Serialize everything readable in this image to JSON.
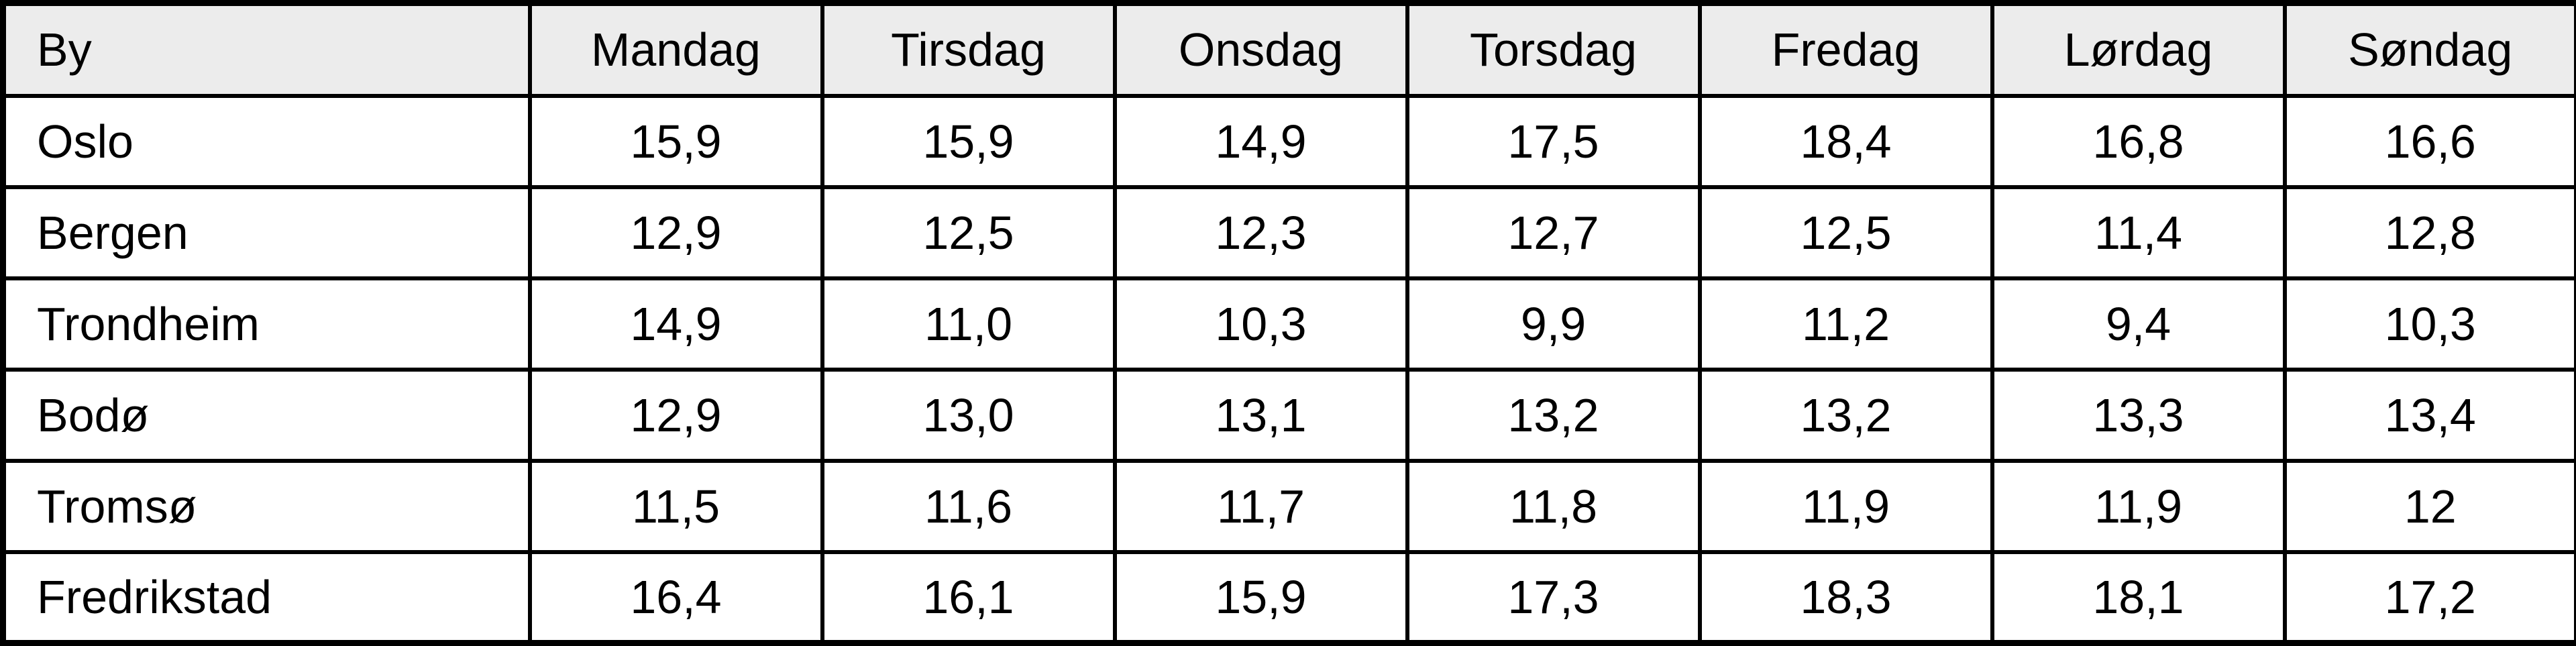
{
  "table": {
    "columns": [
      "By",
      "Mandag",
      "Tirsdag",
      "Onsdag",
      "Torsdag",
      "Fredag",
      "Lørdag",
      "Søndag"
    ],
    "rows": [
      {
        "city": "Oslo",
        "values": [
          "15,9",
          "15,9",
          "14,9",
          "17,5",
          "18,4",
          "16,8",
          "16,6"
        ]
      },
      {
        "city": "Bergen",
        "values": [
          "12,9",
          "12,5",
          "12,3",
          "12,7",
          "12,5",
          "11,4",
          "12,8"
        ]
      },
      {
        "city": "Trondheim",
        "values": [
          "14,9",
          "11,0",
          "10,3",
          "9,9",
          "11,2",
          "9,4",
          "10,3"
        ]
      },
      {
        "city": "Bodø",
        "values": [
          "12,9",
          "13,0",
          "13,1",
          "13,2",
          "13,2",
          "13,3",
          "13,4"
        ]
      },
      {
        "city": "Tromsø",
        "values": [
          "11,5",
          "11,6",
          "11,7",
          "11,8",
          "11,9",
          "11,9",
          "12"
        ]
      },
      {
        "city": "Fredrikstad",
        "values": [
          "16,4",
          "16,1",
          "15,9",
          "17,3",
          "18,3",
          "18,1",
          "17,2"
        ]
      }
    ]
  },
  "chart_data": {
    "type": "table",
    "title": "",
    "categories": [
      "Mandag",
      "Tirsdag",
      "Onsdag",
      "Torsdag",
      "Fredag",
      "Lørdag",
      "Søndag"
    ],
    "series": [
      {
        "name": "Oslo",
        "values": [
          15.9,
          15.9,
          14.9,
          17.5,
          18.4,
          16.8,
          16.6
        ]
      },
      {
        "name": "Bergen",
        "values": [
          12.9,
          12.5,
          12.3,
          12.7,
          12.5,
          11.4,
          12.8
        ]
      },
      {
        "name": "Trondheim",
        "values": [
          14.9,
          11.0,
          10.3,
          9.9,
          11.2,
          9.4,
          10.3
        ]
      },
      {
        "name": "Bodø",
        "values": [
          12.9,
          13.0,
          13.1,
          13.2,
          13.2,
          13.3,
          13.4
        ]
      },
      {
        "name": "Tromsø",
        "values": [
          11.5,
          11.6,
          11.7,
          11.8,
          11.9,
          11.9,
          12.0
        ]
      },
      {
        "name": "Fredrikstad",
        "values": [
          16.4,
          16.1,
          15.9,
          17.3,
          18.3,
          18.1,
          17.2
        ]
      }
    ]
  },
  "colors": {
    "header_bg": "#ececec",
    "row_bg": "#ffffff",
    "border": "#000000",
    "text": "#000000"
  }
}
